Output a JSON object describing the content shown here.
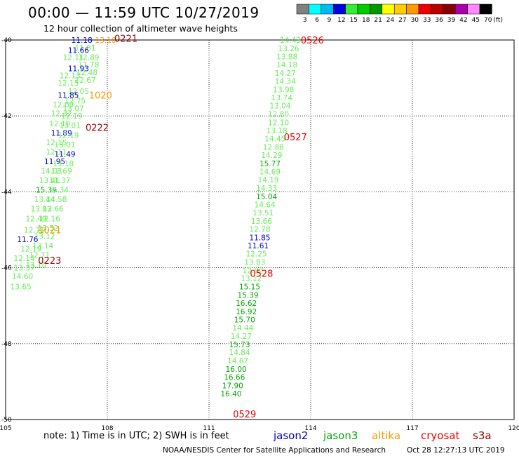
{
  "title": "00:00 — 11:59 UTC 10/27/2019",
  "subtitle": "12 hour collection of altimeter wave heights",
  "note": "note:  1) Time is in UTC;  2) SWH is in feet",
  "credit": "NOAA/NESDIS Center for Satellite Applications and Research",
  "generated": "Oct 28 12:27:13 UTC 2019",
  "satellites": [
    {
      "name": "jason2",
      "color": "#0000cc"
    },
    {
      "name": "jason3",
      "color": "#00aa00"
    },
    {
      "name": "altika",
      "color": "#ff9900"
    },
    {
      "name": "cryosat",
      "color": "#ee0000"
    },
    {
      "name": "s3a",
      "color": "#990000"
    }
  ],
  "colorbar": {
    "labels": [
      "3",
      "6",
      "9",
      "12",
      "15",
      "18",
      "21",
      "24",
      "27",
      "30",
      "33",
      "36",
      "39",
      "42",
      "45",
      "70"
    ],
    "unit": "(ft)",
    "colors": [
      "#808080",
      "#00ffff",
      "#00bbee",
      "#0000dd",
      "#33ee33",
      "#00cc00",
      "#009900",
      "#ffff00",
      "#ffcc00",
      "#ff9900",
      "#ee0000",
      "#bb0000",
      "#880000",
      "#aa00aa",
      "#ff88ff",
      "#000000"
    ]
  },
  "chart_data": {
    "type": "scatter",
    "xlim": [
      105,
      120
    ],
    "ylim": [
      -50,
      -40
    ],
    "x_ticks": [
      105,
      108,
      111,
      114,
      117,
      120
    ],
    "y_ticks": [
      -40,
      -42,
      -44,
      -46,
      -48,
      -50
    ],
    "grid": true,
    "colors": {
      "light": "#66ee55",
      "green": "#00aa00",
      "blue": "#0000cc",
      "orange": "#ff9900",
      "red": "#ee0000",
      "darkred": "#990000"
    },
    "stamps": [
      {
        "text": "0221",
        "lon": 108.55,
        "lat": -39.95,
        "color": "darkred"
      },
      {
        "text": "1020",
        "lon": 107.8,
        "lat": -41.45,
        "color": "orange"
      },
      {
        "text": "0222",
        "lon": 107.7,
        "lat": -42.3,
        "color": "darkred"
      },
      {
        "text": "1021",
        "lon": 106.3,
        "lat": -45.0,
        "color": "orange"
      },
      {
        "text": "0223",
        "lon": 106.3,
        "lat": -45.8,
        "color": "darkred"
      },
      {
        "text": "0526",
        "lon": 114.05,
        "lat": -40.0,
        "color": "red"
      },
      {
        "text": "0527",
        "lon": 113.55,
        "lat": -42.55,
        "color": "red"
      },
      {
        "text": "0528",
        "lon": 112.55,
        "lat": -46.15,
        "color": "red"
      },
      {
        "text": "0529",
        "lon": 112.05,
        "lat": -49.85,
        "color": "red"
      }
    ],
    "tracks": [
      {
        "name": "west-pass",
        "points": [
          {
            "lon": 107.25,
            "lat": -40.0,
            "v": "11.18",
            "c": "blue"
          },
          {
            "lon": 107.95,
            "lat": -40.0,
            "v": "13.10",
            "c": "orange"
          },
          {
            "lon": 107.35,
            "lat": -40.2,
            "v": "11.81",
            "c": "light"
          },
          {
            "lon": 107.15,
            "lat": -40.27,
            "v": "11.66",
            "c": "blue"
          },
          {
            "lon": 107.45,
            "lat": -40.45,
            "v": "12.89",
            "c": "light"
          },
          {
            "lon": 107.0,
            "lat": -40.45,
            "v": "12.11",
            "c": "light"
          },
          {
            "lon": 107.45,
            "lat": -40.65,
            "v": "11.78",
            "c": "light"
          },
          {
            "lon": 107.15,
            "lat": -40.75,
            "v": "11.93",
            "c": "blue"
          },
          {
            "lon": 107.4,
            "lat": -40.85,
            "v": "12.48",
            "c": "light"
          },
          {
            "lon": 106.9,
            "lat": -40.93,
            "v": "12.13",
            "c": "light"
          },
          {
            "lon": 107.35,
            "lat": -41.05,
            "v": "12.67",
            "c": "light"
          },
          {
            "lon": 106.85,
            "lat": -41.13,
            "v": "12.15",
            "c": "light"
          },
          {
            "lon": 107.15,
            "lat": -41.35,
            "v": "12.05",
            "c": "light"
          },
          {
            "lon": 106.85,
            "lat": -41.45,
            "v": "11.85",
            "c": "blue"
          },
          {
            "lon": 107.05,
            "lat": -41.6,
            "v": "12.75",
            "c": "light"
          },
          {
            "lon": 106.7,
            "lat": -41.7,
            "v": "12.09",
            "c": "light"
          },
          {
            "lon": 107.0,
            "lat": -41.8,
            "v": "13.07",
            "c": "light"
          },
          {
            "lon": 106.65,
            "lat": -41.93,
            "v": "12.32",
            "c": "light"
          },
          {
            "lon": 106.95,
            "lat": -42.0,
            "v": "12.19",
            "c": "light"
          },
          {
            "lon": 106.6,
            "lat": -42.2,
            "v": "12.10",
            "c": "light"
          },
          {
            "lon": 106.9,
            "lat": -42.25,
            "v": "13.01",
            "c": "light"
          },
          {
            "lon": 106.65,
            "lat": -42.45,
            "v": "11.89",
            "c": "blue"
          },
          {
            "lon": 106.85,
            "lat": -42.5,
            "v": "12.19",
            "c": "light"
          },
          {
            "lon": 106.5,
            "lat": -42.7,
            "v": "12.15",
            "c": "light"
          },
          {
            "lon": 106.75,
            "lat": -42.75,
            "v": "13.01",
            "c": "light"
          },
          {
            "lon": 106.5,
            "lat": -42.95,
            "v": "12.11",
            "c": "light"
          },
          {
            "lon": 106.75,
            "lat": -43.0,
            "v": "11.49",
            "c": "blue"
          },
          {
            "lon": 106.45,
            "lat": -43.2,
            "v": "11.95",
            "c": "blue"
          },
          {
            "lon": 106.7,
            "lat": -43.25,
            "v": "13.18",
            "c": "light"
          },
          {
            "lon": 106.35,
            "lat": -43.45,
            "v": "14.03",
            "c": "light"
          },
          {
            "lon": 106.65,
            "lat": -43.45,
            "v": "12.69",
            "c": "light"
          },
          {
            "lon": 106.3,
            "lat": -43.7,
            "v": "13.41",
            "c": "light"
          },
          {
            "lon": 106.6,
            "lat": -43.7,
            "v": "11.37",
            "c": "light"
          },
          {
            "lon": 106.2,
            "lat": -43.95,
            "v": "15.39",
            "c": "green"
          },
          {
            "lon": 106.55,
            "lat": -43.95,
            "v": "13.34",
            "c": "light"
          },
          {
            "lon": 106.15,
            "lat": -44.2,
            "v": "13.44",
            "c": "light"
          },
          {
            "lon": 106.5,
            "lat": -44.2,
            "v": "14.58",
            "c": "light"
          },
          {
            "lon": 106.05,
            "lat": -44.45,
            "v": "13.83",
            "c": "light"
          },
          {
            "lon": 106.4,
            "lat": -44.45,
            "v": "12.66",
            "c": "light"
          },
          {
            "lon": 105.9,
            "lat": -44.7,
            "v": "12.49",
            "c": "light"
          },
          {
            "lon": 106.3,
            "lat": -44.7,
            "v": "12.16",
            "c": "light"
          },
          {
            "lon": 106.25,
            "lat": -44.95,
            "v": "13.52",
            "c": "light"
          },
          {
            "lon": 105.85,
            "lat": -45.0,
            "v": "12.11",
            "c": "light"
          },
          {
            "lon": 106.15,
            "lat": -45.17,
            "v": "13.12",
            "c": "light"
          },
          {
            "lon": 105.65,
            "lat": -45.25,
            "v": "11.76",
            "c": "blue"
          },
          {
            "lon": 106.1,
            "lat": -45.42,
            "v": "13.14",
            "c": "light"
          },
          {
            "lon": 105.75,
            "lat": -45.5,
            "v": "12.19",
            "c": "light"
          },
          {
            "lon": 106.0,
            "lat": -45.67,
            "v": "12.71",
            "c": "light"
          },
          {
            "lon": 105.55,
            "lat": -45.75,
            "v": "12.14",
            "c": "light"
          },
          {
            "lon": 105.9,
            "lat": -45.92,
            "v": "13.10",
            "c": "light"
          },
          {
            "lon": 105.55,
            "lat": -46.0,
            "v": "13.37",
            "c": "light"
          },
          {
            "lon": 105.5,
            "lat": -46.22,
            "v": "14.60",
            "c": "light"
          },
          {
            "lon": 105.45,
            "lat": -46.5,
            "v": "13.65",
            "c": "light"
          }
        ]
      },
      {
        "name": "east-pass",
        "points": [
          {
            "lon": 113.4,
            "lat": -40.0,
            "v": "14.43",
            "c": "light"
          },
          {
            "lon": 113.35,
            "lat": -40.22,
            "v": "13.26",
            "c": "light"
          },
          {
            "lon": 113.3,
            "lat": -40.43,
            "v": "13.88",
            "c": "light"
          },
          {
            "lon": 113.3,
            "lat": -40.65,
            "v": "14.18",
            "c": "light"
          },
          {
            "lon": 113.25,
            "lat": -40.87,
            "v": "14.27",
            "c": "light"
          },
          {
            "lon": 113.25,
            "lat": -41.08,
            "v": "14.34",
            "c": "light"
          },
          {
            "lon": 113.2,
            "lat": -41.3,
            "v": "13.98",
            "c": "light"
          },
          {
            "lon": 113.15,
            "lat": -41.52,
            "v": "13.74",
            "c": "light"
          },
          {
            "lon": 113.1,
            "lat": -41.73,
            "v": "13.04",
            "c": "light"
          },
          {
            "lon": 113.05,
            "lat": -41.95,
            "v": "12.80",
            "c": "light"
          },
          {
            "lon": 113.05,
            "lat": -42.17,
            "v": "12.10",
            "c": "light"
          },
          {
            "lon": 113.0,
            "lat": -42.38,
            "v": "13.18",
            "c": "light"
          },
          {
            "lon": 112.95,
            "lat": -42.6,
            "v": "14.45",
            "c": "light"
          },
          {
            "lon": 112.9,
            "lat": -42.82,
            "v": "12.88",
            "c": "light"
          },
          {
            "lon": 112.85,
            "lat": -43.03,
            "v": "14.29",
            "c": "light"
          },
          {
            "lon": 112.8,
            "lat": -43.25,
            "v": "15.77",
            "c": "green"
          },
          {
            "lon": 112.8,
            "lat": -43.47,
            "v": "14.69",
            "c": "light"
          },
          {
            "lon": 112.75,
            "lat": -43.68,
            "v": "14.19",
            "c": "light"
          },
          {
            "lon": 112.7,
            "lat": -43.9,
            "v": "14.33",
            "c": "light"
          },
          {
            "lon": 112.7,
            "lat": -44.12,
            "v": "15.04",
            "c": "green"
          },
          {
            "lon": 112.65,
            "lat": -44.33,
            "v": "14.64",
            "c": "light"
          },
          {
            "lon": 112.6,
            "lat": -44.55,
            "v": "13.51",
            "c": "light"
          },
          {
            "lon": 112.55,
            "lat": -44.77,
            "v": "13.66",
            "c": "light"
          },
          {
            "lon": 112.5,
            "lat": -44.98,
            "v": "12.78",
            "c": "light"
          },
          {
            "lon": 112.5,
            "lat": -45.2,
            "v": "11.85",
            "c": "blue"
          },
          {
            "lon": 112.45,
            "lat": -45.42,
            "v": "11.61",
            "c": "blue"
          },
          {
            "lon": 112.4,
            "lat": -45.63,
            "v": "12.25",
            "c": "light"
          },
          {
            "lon": 112.35,
            "lat": -45.85,
            "v": "13.83",
            "c": "light"
          },
          {
            "lon": 112.3,
            "lat": -46.07,
            "v": "12.92",
            "c": "light"
          },
          {
            "lon": 112.25,
            "lat": -46.28,
            "v": "13.12",
            "c": "light"
          },
          {
            "lon": 112.2,
            "lat": -46.5,
            "v": "15.15",
            "c": "green"
          },
          {
            "lon": 112.15,
            "lat": -46.72,
            "v": "15.39",
            "c": "green"
          },
          {
            "lon": 112.1,
            "lat": -46.93,
            "v": "16.62",
            "c": "green"
          },
          {
            "lon": 112.1,
            "lat": -47.15,
            "v": "16.92",
            "c": "green"
          },
          {
            "lon": 112.05,
            "lat": -47.37,
            "v": "15.70",
            "c": "green"
          },
          {
            "lon": 112.0,
            "lat": -47.58,
            "v": "14.44",
            "c": "light"
          },
          {
            "lon": 111.95,
            "lat": -47.8,
            "v": "14.27",
            "c": "light"
          },
          {
            "lon": 111.9,
            "lat": -48.02,
            "v": "15.73",
            "c": "green"
          },
          {
            "lon": 111.9,
            "lat": -48.23,
            "v": "14.84",
            "c": "light"
          },
          {
            "lon": 111.85,
            "lat": -48.45,
            "v": "14.67",
            "c": "light"
          },
          {
            "lon": 111.8,
            "lat": -48.67,
            "v": "16.00",
            "c": "green"
          },
          {
            "lon": 111.75,
            "lat": -48.88,
            "v": "16.66",
            "c": "green"
          },
          {
            "lon": 111.7,
            "lat": -49.1,
            "v": "17.90",
            "c": "green"
          },
          {
            "lon": 111.65,
            "lat": -49.32,
            "v": "16.40",
            "c": "green"
          }
        ]
      }
    ]
  }
}
